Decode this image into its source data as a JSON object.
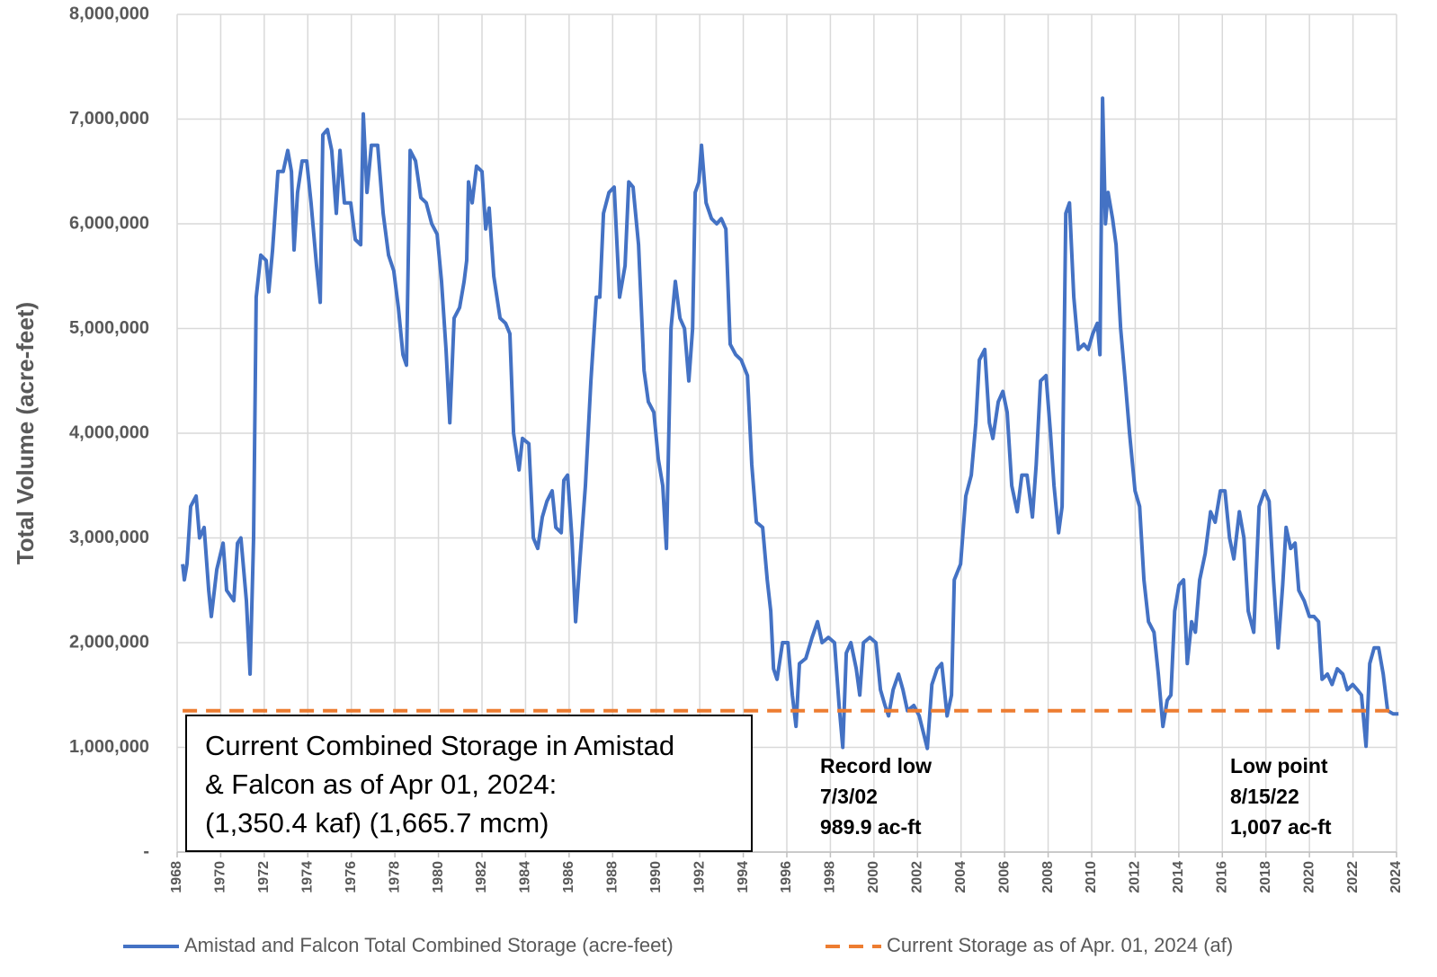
{
  "chart_data": {
    "type": "line",
    "y_axis_label": "Total Volume (acre-feet)",
    "xlim": [
      1968,
      2024
    ],
    "xticks": [
      1968,
      1970,
      1972,
      1974,
      1976,
      1978,
      1980,
      1982,
      1984,
      1986,
      1988,
      1990,
      1992,
      1994,
      1996,
      1998,
      2000,
      2002,
      2004,
      2006,
      2008,
      2010,
      2012,
      2014,
      2016,
      2018,
      2020,
      2022,
      2024
    ],
    "ylim": [
      0,
      8000000
    ],
    "yticks": [
      {
        "value": 0,
        "label": "-"
      },
      {
        "value": 1000000,
        "label": "1,000,000"
      },
      {
        "value": 2000000,
        "label": "2,000,000"
      },
      {
        "value": 3000000,
        "label": "3,000,000"
      },
      {
        "value": 4000000,
        "label": "4,000,000"
      },
      {
        "value": 5000000,
        "label": "5,000,000"
      },
      {
        "value": 6000000,
        "label": "6,000,000"
      },
      {
        "value": 7000000,
        "label": "7,000,000"
      },
      {
        "value": 8000000,
        "label": "8,000,000"
      }
    ],
    "grid": true,
    "legend": "bottom",
    "series": [
      {
        "name": "Amistad and Falcon Total Combined Storage (acre-feet)",
        "color": "#4472c4",
        "style": "solid",
        "x": [
          1968.25,
          1968.33,
          1968.45,
          1968.62,
          1968.87,
          1969.03,
          1969.24,
          1969.45,
          1969.57,
          1969.82,
          1970.11,
          1970.27,
          1970.6,
          1970.77,
          1970.93,
          1971.18,
          1971.35,
          1971.51,
          1971.63,
          1971.84,
          1972.09,
          1972.21,
          1972.38,
          1972.63,
          1972.87,
          1973.08,
          1973.25,
          1973.37,
          1973.53,
          1973.74,
          1973.95,
          1974.15,
          1974.4,
          1974.57,
          1974.69,
          1974.9,
          1975.1,
          1975.31,
          1975.48,
          1975.68,
          1975.97,
          1976.18,
          1976.43,
          1976.55,
          1976.72,
          1976.92,
          1977.21,
          1977.46,
          1977.71,
          1977.95,
          1978.16,
          1978.37,
          1978.53,
          1978.7,
          1978.95,
          1979.19,
          1979.44,
          1979.69,
          1979.94,
          1980.14,
          1980.35,
          1980.52,
          1980.72,
          1980.97,
          1981.18,
          1981.3,
          1981.38,
          1981.55,
          1981.75,
          1982.0,
          1982.17,
          1982.33,
          1982.54,
          1982.83,
          1983.08,
          1983.28,
          1983.45,
          1983.7,
          1983.86,
          1984.15,
          1984.36,
          1984.56,
          1984.77,
          1984.98,
          1985.22,
          1985.39,
          1985.64,
          1985.76,
          1985.93,
          1986.13,
          1986.3,
          1986.5,
          1986.75,
          1987.0,
          1987.25,
          1987.41,
          1987.58,
          1987.83,
          1988.07,
          1988.32,
          1988.57,
          1988.74,
          1988.94,
          1989.19,
          1989.44,
          1989.64,
          1989.89,
          1990.1,
          1990.3,
          1990.47,
          1990.68,
          1990.88,
          1991.09,
          1991.3,
          1991.5,
          1991.67,
          1991.79,
          1991.96,
          1992.08,
          1992.29,
          1992.54,
          1992.78,
          1992.99,
          1993.2,
          1993.4,
          1993.65,
          1993.9,
          1994.19,
          1994.39,
          1994.6,
          1994.89,
          1995.1,
          1995.26,
          1995.39,
          1995.55,
          1995.8,
          1996.05,
          1996.25,
          1996.42,
          1996.58,
          1996.87,
          1997.16,
          1997.41,
          1997.62,
          1997.91,
          1998.19,
          1998.4,
          1998.57,
          1998.73,
          1998.94,
          1999.19,
          1999.35,
          1999.52,
          1999.81,
          2000.09,
          2000.3,
          2000.51,
          2000.67,
          2000.88,
          2001.13,
          2001.33,
          2001.54,
          2001.83,
          2002.08,
          2002.45,
          2002.66,
          2002.9,
          2003.11,
          2003.36,
          2003.56,
          2003.69,
          2003.98,
          2004.22,
          2004.47,
          2004.68,
          2004.84,
          2005.09,
          2005.3,
          2005.46,
          2005.71,
          2005.92,
          2006.12,
          2006.33,
          2006.58,
          2006.79,
          2007.03,
          2007.28,
          2007.45,
          2007.65,
          2007.9,
          2008.11,
          2008.27,
          2008.48,
          2008.64,
          2008.81,
          2008.98,
          2009.18,
          2009.39,
          2009.64,
          2009.84,
          2010.05,
          2010.26,
          2010.38,
          2010.5,
          2010.63,
          2010.75,
          2010.96,
          2011.12,
          2011.33,
          2011.54,
          2011.74,
          2011.99,
          2012.2,
          2012.4,
          2012.61,
          2012.86,
          2013.06,
          2013.27,
          2013.47,
          2013.64,
          2013.81,
          2014.01,
          2014.22,
          2014.39,
          2014.59,
          2014.76,
          2014.96,
          2015.21,
          2015.46,
          2015.67,
          2015.91,
          2016.12,
          2016.33,
          2016.53,
          2016.78,
          2016.99,
          2017.19,
          2017.44,
          2017.69,
          2017.94,
          2018.15,
          2018.35,
          2018.56,
          2018.77,
          2018.93,
          2019.14,
          2019.34,
          2019.51,
          2019.76,
          2020.0,
          2020.21,
          2020.42,
          2020.58,
          2020.83,
          2021.04,
          2021.28,
          2021.53,
          2021.74,
          2021.99,
          2022.2,
          2022.39,
          2022.6,
          2022.77,
          2022.97,
          2023.18,
          2023.39,
          2023.59,
          2023.84,
          2024.09
        ],
        "values": [
          2750000,
          2600000,
          2750000,
          3300000,
          3400000,
          3000000,
          3100000,
          2500000,
          2250000,
          2700000,
          2950000,
          2500000,
          2400000,
          2950000,
          3000000,
          2400000,
          1700000,
          3000000,
          5300000,
          5700000,
          5650000,
          5350000,
          5750000,
          6500000,
          6500000,
          6700000,
          6500000,
          5750000,
          6300000,
          6600000,
          6600000,
          6200000,
          5600000,
          5250000,
          6850000,
          6900000,
          6700000,
          6100000,
          6700000,
          6200000,
          6200000,
          5850000,
          5800000,
          7050000,
          6300000,
          6750000,
          6750000,
          6100000,
          5700000,
          5550000,
          5200000,
          4750000,
          4650000,
          6700000,
          6600000,
          6250000,
          6200000,
          6000000,
          5900000,
          5450000,
          4800000,
          4100000,
          5100000,
          5200000,
          5450000,
          5650000,
          6400000,
          6200000,
          6550000,
          6500000,
          5950000,
          6150000,
          5500000,
          5100000,
          5050000,
          4950000,
          4000000,
          3650000,
          3950000,
          3900000,
          3000000,
          2900000,
          3200000,
          3350000,
          3450000,
          3100000,
          3050000,
          3550000,
          3600000,
          3000000,
          2200000,
          2800000,
          3500000,
          4500000,
          5300000,
          5300000,
          6100000,
          6300000,
          6350000,
          5300000,
          5600000,
          6400000,
          6350000,
          5800000,
          4600000,
          4300000,
          4200000,
          3750000,
          3500000,
          2900000,
          5000000,
          5450000,
          5100000,
          5000000,
          4500000,
          5000000,
          6300000,
          6400000,
          6750000,
          6200000,
          6050000,
          6000000,
          6050000,
          5950000,
          4850000,
          4750000,
          4700000,
          4550000,
          3700000,
          3150000,
          3100000,
          2600000,
          2300000,
          1750000,
          1650000,
          2000000,
          2000000,
          1500000,
          1200000,
          1800000,
          1850000,
          2050000,
          2200000,
          2000000,
          2050000,
          2000000,
          1400000,
          1000000,
          1900000,
          2000000,
          1750000,
          1500000,
          2000000,
          2050000,
          2000000,
          1550000,
          1400000,
          1300000,
          1550000,
          1700000,
          1550000,
          1350000,
          1400000,
          1300000,
          990000,
          1600000,
          1750000,
          1800000,
          1300000,
          1500000,
          2600000,
          2750000,
          3400000,
          3600000,
          4100000,
          4700000,
          4800000,
          4100000,
          3950000,
          4300000,
          4400000,
          4200000,
          3500000,
          3250000,
          3600000,
          3600000,
          3200000,
          3700000,
          4500000,
          4550000,
          4000000,
          3500000,
          3050000,
          3300000,
          6100000,
          6200000,
          5300000,
          4800000,
          4850000,
          4800000,
          4950000,
          5050000,
          4750000,
          7200000,
          6000000,
          6300000,
          6050000,
          5800000,
          5000000,
          4500000,
          4000000,
          3450000,
          3300000,
          2600000,
          2200000,
          2100000,
          1700000,
          1200000,
          1450000,
          1500000,
          2300000,
          2550000,
          2600000,
          1800000,
          2200000,
          2100000,
          2600000,
          2850000,
          3250000,
          3150000,
          3450000,
          3450000,
          3000000,
          2800000,
          3250000,
          3000000,
          2300000,
          2100000,
          3300000,
          3450000,
          3350000,
          2600000,
          1950000,
          2550000,
          3100000,
          2900000,
          2950000,
          2500000,
          2400000,
          2250000,
          2250000,
          2200000,
          1650000,
          1700000,
          1600000,
          1750000,
          1700000,
          1550000,
          1600000,
          1550000,
          1500000,
          1010000,
          1800000,
          1950000,
          1950000,
          1700000,
          1350000,
          1320000,
          1320000
        ]
      },
      {
        "name": "Current Storage as of Apr. 01, 2024 (af)",
        "color": "#ed7d31",
        "style": "dashed",
        "x": [
          1968.25,
          2024.09
        ],
        "values": [
          1350400,
          1350400
        ]
      }
    ],
    "annotations": [
      {
        "lines": [
          "Current Combined Storage in Amistad",
          "& Falcon as of Apr 01, 2024:",
          "(1,350.4 kaf) (1,665.7 mcm)"
        ]
      },
      {
        "lines": [
          "Record low",
          "7/3/02",
          "989.9 ac-ft"
        ]
      },
      {
        "lines": [
          "Low point",
          "8/15/22",
          "1,007 ac-ft"
        ]
      }
    ]
  }
}
